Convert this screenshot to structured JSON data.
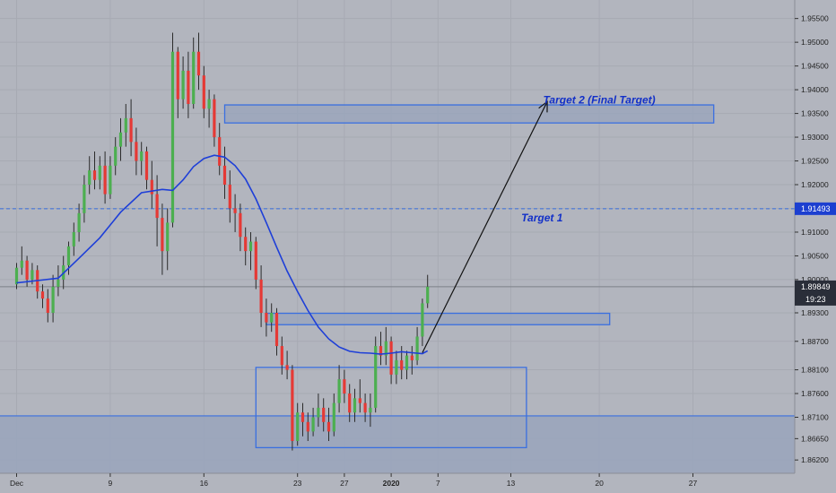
{
  "chart_data": {
    "type": "candlestick",
    "background": "#b2b5be",
    "colors": {
      "up": "#4caf50",
      "down": "#e53935",
      "moving_average": "#1e3fd8",
      "zone_stroke": "#3a6fe0",
      "zone_fill": "#9aa5bb",
      "target_text": "#1230c8",
      "last_price_label": "#2a2e39",
      "target1_label": "#1c3fd0"
    },
    "y_axis": {
      "range": [
        1.8592,
        1.9589
      ],
      "ticks": [
        "1.95500",
        "1.95000",
        "1.94500",
        "1.94000",
        "1.93500",
        "1.93000",
        "1.92500",
        "1.92000",
        "1.91500",
        "1.91000",
        "1.90500",
        "1.90000",
        "1.89300",
        "1.88700",
        "1.88100",
        "1.87600",
        "1.87100",
        "1.86650",
        "1.86200"
      ]
    },
    "x_axis": {
      "ticks": [
        {
          "label": "Dec",
          "bar": 0
        },
        {
          "label": "9",
          "bar": 18
        },
        {
          "label": "16",
          "bar": 36
        },
        {
          "label": "23",
          "bar": 54
        },
        {
          "label": "27",
          "bar": 63
        },
        {
          "label": "2020",
          "bar": 72
        },
        {
          "label": "7",
          "bar": 81
        },
        {
          "label": "13",
          "bar": 95
        },
        {
          "label": "20",
          "bar": 112
        },
        {
          "label": "27",
          "bar": 130
        }
      ],
      "bar_range": [
        -1,
        146
      ]
    },
    "last_price": {
      "value": 1.89849,
      "label": "1.89849",
      "countdown": "19:23"
    },
    "target1": {
      "value": 1.91493,
      "label": "1.91493",
      "text": "Target 1"
    },
    "target2": {
      "text": "Target 2 (Final Target)"
    },
    "zones": [
      {
        "bar_from": 40,
        "bar_to": 134,
        "y_high": 1.9368,
        "y_low": 1.933
      },
      {
        "bar_from": 48,
        "bar_to": 114,
        "y_high": 1.8929,
        "y_low": 1.8905
      },
      {
        "bar_from": 46,
        "bar_to": 98,
        "y_high": 1.8815,
        "y_low": 1.8646
      }
    ],
    "support_line": {
      "value": 1.8713
    },
    "arrow": {
      "from_bar": 78,
      "from_y": 1.8846,
      "to_bar": 102,
      "to_y": 1.9375
    },
    "candles": [
      [
        1.899,
        1.9035,
        1.898,
        1.9025
      ],
      [
        1.9025,
        1.907,
        1.901,
        1.904
      ],
      [
        1.904,
        1.905,
        1.8985,
        1.9
      ],
      [
        1.9,
        1.9035,
        1.899,
        1.902
      ],
      [
        1.902,
        1.903,
        1.896,
        1.8975
      ],
      [
        1.8975,
        1.899,
        1.894,
        1.896
      ],
      [
        1.896,
        1.898,
        1.891,
        1.893
      ],
      [
        1.893,
        1.901,
        1.891,
        1.8985
      ],
      [
        1.8985,
        1.903,
        1.8965,
        1.9
      ],
      [
        1.9,
        1.905,
        1.898,
        1.903
      ],
      [
        1.903,
        1.908,
        1.901,
        1.907
      ],
      [
        1.907,
        1.912,
        1.905,
        1.91
      ],
      [
        1.91,
        1.916,
        1.908,
        1.914
      ],
      [
        1.914,
        1.922,
        1.912,
        1.92
      ],
      [
        1.92,
        1.926,
        1.918,
        1.923
      ],
      [
        1.923,
        1.927,
        1.919,
        1.921
      ],
      [
        1.921,
        1.926,
        1.919,
        1.924
      ],
      [
        1.924,
        1.927,
        1.916,
        1.918
      ],
      [
        1.918,
        1.926,
        1.917,
        1.924
      ],
      [
        1.924,
        1.93,
        1.922,
        1.928
      ],
      [
        1.928,
        1.934,
        1.925,
        1.931
      ],
      [
        1.931,
        1.937,
        1.928,
        1.934
      ],
      [
        1.934,
        1.938,
        1.926,
        1.929
      ],
      [
        1.929,
        1.932,
        1.922,
        1.925
      ],
      [
        1.925,
        1.929,
        1.922,
        1.927
      ],
      [
        1.927,
        1.928,
        1.919,
        1.921
      ],
      [
        1.921,
        1.925,
        1.915,
        1.918
      ],
      [
        1.918,
        1.922,
        1.907,
        1.913
      ],
      [
        1.913,
        1.916,
        1.901,
        1.906
      ],
      [
        1.906,
        1.915,
        1.902,
        1.912
      ],
      [
        1.912,
        1.952,
        1.911,
        1.948
      ],
      [
        1.948,
        1.949,
        1.934,
        1.938
      ],
      [
        1.938,
        1.947,
        1.936,
        1.944
      ],
      [
        1.944,
        1.948,
        1.934,
        1.937
      ],
      [
        1.937,
        1.951,
        1.936,
        1.948
      ],
      [
        1.948,
        1.952,
        1.94,
        1.943
      ],
      [
        1.943,
        1.945,
        1.934,
        1.936
      ],
      [
        1.936,
        1.94,
        1.932,
        1.938
      ],
      [
        1.938,
        1.939,
        1.928,
        1.93
      ],
      [
        1.93,
        1.933,
        1.922,
        1.924
      ],
      [
        1.924,
        1.928,
        1.917,
        1.92
      ],
      [
        1.92,
        1.923,
        1.912,
        1.915
      ],
      [
        1.915,
        1.918,
        1.91,
        1.914
      ],
      [
        1.914,
        1.916,
        1.906,
        1.909
      ],
      [
        1.909,
        1.911,
        1.903,
        1.906
      ],
      [
        1.906,
        1.91,
        1.902,
        1.908
      ],
      [
        1.908,
        1.909,
        1.898,
        1.9
      ],
      [
        1.9,
        1.903,
        1.89,
        1.893
      ],
      [
        1.893,
        1.896,
        1.888,
        1.891
      ],
      [
        1.891,
        1.895,
        1.889,
        1.893
      ],
      [
        1.893,
        1.894,
        1.884,
        1.886
      ],
      [
        1.886,
        1.888,
        1.88,
        1.882
      ],
      [
        1.882,
        1.885,
        1.879,
        1.881
      ],
      [
        1.881,
        1.882,
        1.864,
        1.866
      ],
      [
        1.866,
        1.874,
        1.865,
        1.872
      ],
      [
        1.872,
        1.874,
        1.867,
        1.87
      ],
      [
        1.87,
        1.872,
        1.866,
        1.868
      ],
      [
        1.868,
        1.873,
        1.867,
        1.871
      ],
      [
        1.871,
        1.876,
        1.869,
        1.873
      ],
      [
        1.873,
        1.875,
        1.868,
        1.87
      ],
      [
        1.87,
        1.873,
        1.866,
        1.868
      ],
      [
        1.868,
        1.876,
        1.867,
        1.874
      ],
      [
        1.874,
        1.882,
        1.872,
        1.879
      ],
      [
        1.879,
        1.881,
        1.874,
        1.876
      ],
      [
        1.876,
        1.878,
        1.87,
        1.872
      ],
      [
        1.872,
        1.877,
        1.87,
        1.875
      ],
      [
        1.875,
        1.879,
        1.872,
        1.874
      ],
      [
        1.874,
        1.876,
        1.87,
        1.872
      ],
      [
        1.872,
        1.876,
        1.869,
        1.873
      ],
      [
        1.873,
        1.888,
        1.872,
        1.886
      ],
      [
        1.886,
        1.889,
        1.882,
        1.884
      ],
      [
        1.884,
        1.89,
        1.882,
        1.887
      ],
      [
        1.887,
        1.888,
        1.878,
        1.88
      ],
      [
        1.88,
        1.885,
        1.878,
        1.883
      ],
      [
        1.883,
        1.886,
        1.879,
        1.881
      ],
      [
        1.881,
        1.885,
        1.879,
        1.884
      ],
      [
        1.884,
        1.886,
        1.88,
        1.883
      ],
      [
        1.883,
        1.89,
        1.882,
        1.888
      ],
      [
        1.888,
        1.896,
        1.886,
        1.895
      ],
      [
        1.895,
        1.901,
        1.894,
        1.8985
      ]
    ],
    "candles_start_bar": 0,
    "moving_average": [
      [
        0,
        1.8993
      ],
      [
        4,
        1.8998
      ],
      [
        8,
        1.9003
      ],
      [
        12,
        1.9045
      ],
      [
        16,
        1.9088
      ],
      [
        20,
        1.9142
      ],
      [
        24,
        1.9183
      ],
      [
        28,
        1.919
      ],
      [
        30,
        1.9188
      ],
      [
        32,
        1.921
      ],
      [
        34,
        1.9238
      ],
      [
        36,
        1.9255
      ],
      [
        38,
        1.9262
      ],
      [
        40,
        1.9258
      ],
      [
        42,
        1.924
      ],
      [
        44,
        1.9212
      ],
      [
        46,
        1.917
      ],
      [
        48,
        1.912
      ],
      [
        50,
        1.9068
      ],
      [
        52,
        1.9018
      ],
      [
        54,
        1.8975
      ],
      [
        56,
        1.8935
      ],
      [
        58,
        1.89
      ],
      [
        60,
        1.8875
      ],
      [
        62,
        1.8858
      ],
      [
        64,
        1.8849
      ],
      [
        66,
        1.8846
      ],
      [
        68,
        1.8845
      ],
      [
        70,
        1.8843
      ],
      [
        72,
        1.8845
      ],
      [
        74,
        1.8848
      ],
      [
        76,
        1.8846
      ],
      [
        78,
        1.8844
      ],
      [
        79,
        1.885
      ]
    ]
  }
}
